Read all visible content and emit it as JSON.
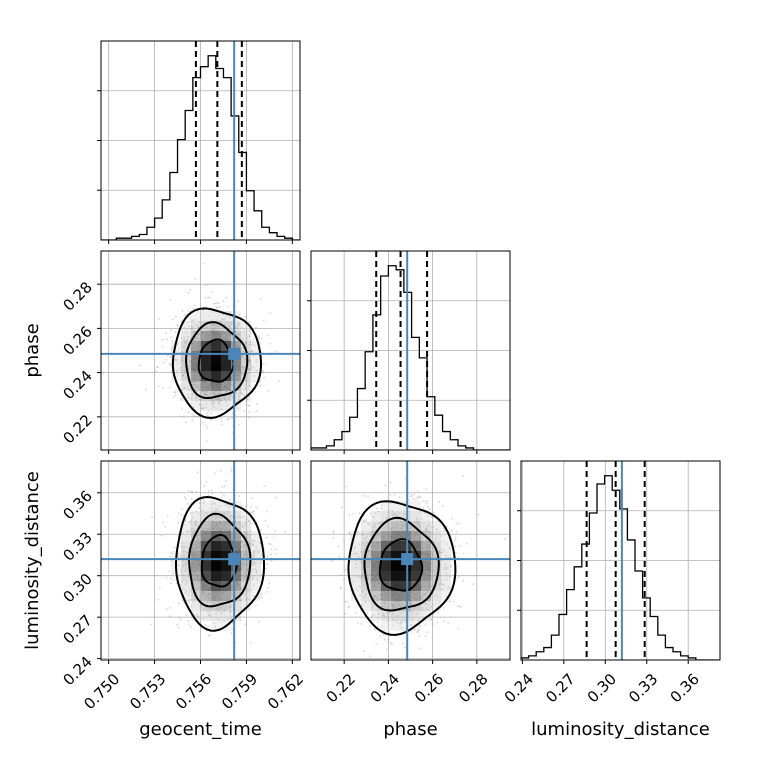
{
  "chart_data": {
    "type": "corner",
    "parameters": [
      "geocent_time",
      "phase",
      "luminosity_distance"
    ],
    "axis_labels": [
      "geocent_time",
      "phase",
      "luminosity_distance"
    ],
    "ranges": {
      "geocent_time": [
        0.7495,
        0.7625
      ],
      "phase": [
        0.205,
        0.295
      ],
      "luminosity_distance": [
        0.239,
        0.383
      ]
    },
    "ticks": {
      "geocent_time": [
        "0.750",
        "0.753",
        "0.756",
        "0.759",
        "0.762"
      ],
      "phase": [
        "0.22",
        "0.24",
        "0.26",
        "0.28"
      ],
      "luminosity_distance": [
        "0.24",
        "0.27",
        "0.30",
        "0.33",
        "0.36"
      ]
    },
    "truths": {
      "geocent_time": 0.7582,
      "phase": 0.2485,
      "luminosity_distance": 0.312
    },
    "quantiles": {
      "geocent_time": [
        0.7557,
        0.7571,
        0.7587
      ],
      "phase": [
        0.2345,
        0.2455,
        0.2575
      ],
      "luminosity_distance": [
        0.2865,
        0.3075,
        0.3285
      ]
    },
    "histograms": {
      "geocent_time": {
        "bin_edges": [
          0.7495,
          0.75,
          0.7505,
          0.751,
          0.7515,
          0.752,
          0.7525,
          0.753,
          0.7535,
          0.754,
          0.7545,
          0.755,
          0.7555,
          0.756,
          0.7565,
          0.757,
          0.7575,
          0.758,
          0.7585,
          0.759,
          0.7595,
          0.76,
          0.7605,
          0.761,
          0.7615,
          0.762,
          0.7625
        ],
        "counts": [
          0,
          0,
          1,
          1,
          2,
          3,
          7,
          12,
          22,
          37,
          55,
          71,
          89,
          95,
          101,
          94,
          89,
          68,
          48,
          27,
          16,
          7,
          4,
          2,
          1,
          0
        ]
      },
      "phase": {
        "bin_edges": [
          0.205,
          0.2085,
          0.212,
          0.2155,
          0.219,
          0.2225,
          0.226,
          0.2295,
          0.233,
          0.2365,
          0.24,
          0.2435,
          0.247,
          0.2505,
          0.254,
          0.2575,
          0.261,
          0.2645,
          0.268,
          0.2715,
          0.275,
          0.2785,
          0.282,
          0.2855,
          0.289,
          0.2925,
          0.295
        ],
        "counts": [
          1,
          1,
          2,
          5,
          9,
          16,
          30,
          48,
          66,
          85,
          90,
          88,
          77,
          55,
          45,
          26,
          17,
          9,
          5,
          2,
          1,
          0,
          0,
          0,
          0,
          0
        ]
      },
      "luminosity_distance": {
        "bin_edges": [
          0.239,
          0.2445,
          0.25,
          0.2555,
          0.261,
          0.2665,
          0.272,
          0.2775,
          0.283,
          0.2885,
          0.294,
          0.2995,
          0.305,
          0.3105,
          0.316,
          0.3215,
          0.327,
          0.3325,
          0.338,
          0.3435,
          0.349,
          0.3545,
          0.36,
          0.3655,
          0.371,
          0.3765,
          0.383
        ],
        "counts": [
          1,
          2,
          4,
          6,
          12,
          22,
          34,
          45,
          56,
          71,
          85,
          89,
          82,
          73,
          58,
          43,
          30,
          21,
          12,
          6,
          4,
          2,
          1,
          0,
          0,
          0
        ]
      }
    },
    "pairs": [
      {
        "x": "geocent_time",
        "y": "phase",
        "peak": [
          0.757,
          0.245
        ],
        "sigma": [
          0.00125,
          0.0105
        ]
      },
      {
        "x": "geocent_time",
        "y": "luminosity_distance",
        "peak": [
          0.7572,
          0.31
        ],
        "sigma": [
          0.00125,
          0.0205
        ]
      },
      {
        "x": "phase",
        "y": "luminosity_distance",
        "peak": [
          0.2455,
          0.307
        ],
        "sigma": [
          0.0105,
          0.0205
        ]
      }
    ],
    "contour_levels_sigma": [
      0.9,
      1.6,
      2.3
    ],
    "truth_color": "#4b86b8",
    "grid": true
  }
}
